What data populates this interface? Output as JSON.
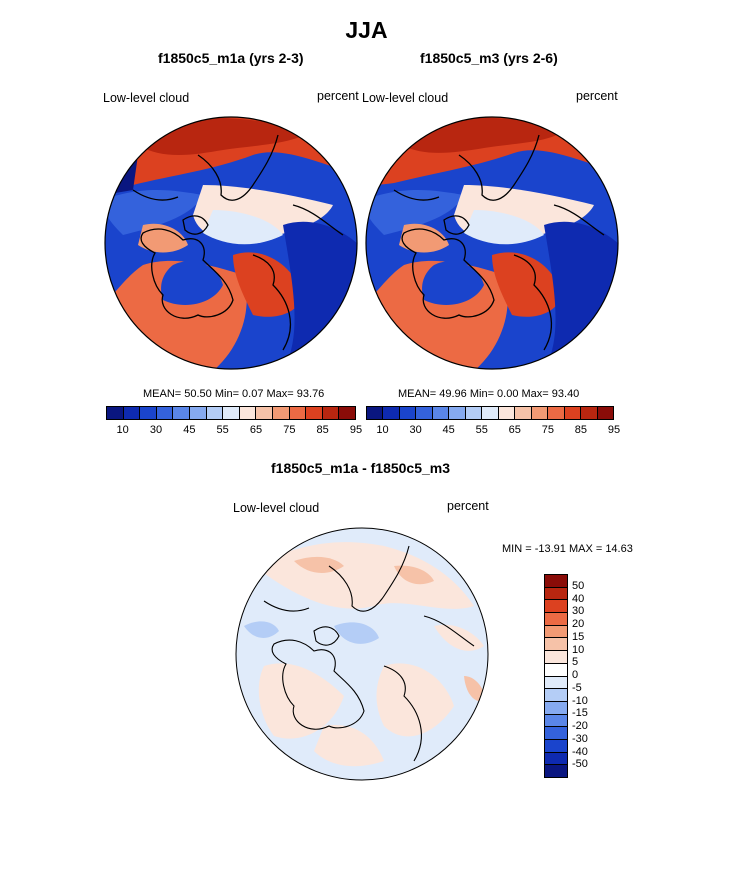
{
  "title": "JJA",
  "panels": [
    {
      "title": "f1850c5_m1a (yrs 2-3)",
      "left_label": "Low-level cloud",
      "right_label": "percent",
      "stats": "MEAN=  50.50  Min=   0.07  Max=  93.76"
    },
    {
      "title": "f1850c5_m3 (yrs 2-6)",
      "left_label": "Low-level cloud",
      "right_label": "percent",
      "stats": "MEAN=  49.96  Min=   0.00  Max=  93.40"
    }
  ],
  "colorbar": {
    "colors": [
      "#0a1680",
      "#0e2ab0",
      "#1a44cc",
      "#3462dc",
      "#5a86e8",
      "#86aaf0",
      "#b4cdf6",
      "#e0ebfa",
      "#fbe6dc",
      "#f6c2a8",
      "#f29a74",
      "#ec6a44",
      "#dc4120",
      "#b82610",
      "#8a0c08"
    ],
    "ticks": [
      "10",
      "30",
      "45",
      "55",
      "65",
      "75",
      "85",
      "95"
    ]
  },
  "diff_panel": {
    "title": "f1850c5_m1a - f1850c5_m3",
    "left_label": "Low-level cloud",
    "right_label": "percent",
    "stats": "MIN = -13.91 MAX =  14.63"
  },
  "diff_colorbar": {
    "colors": [
      "#8a0c08",
      "#b82610",
      "#dc4120",
      "#ec6a44",
      "#f29a74",
      "#f6c2a8",
      "#fbe6dc",
      "#ffffff",
      "#e0ebfa",
      "#b4cdf6",
      "#86aaf0",
      "#5a86e8",
      "#3462dc",
      "#1a44cc",
      "#0e2ab0",
      "#0a1680"
    ],
    "ticks": [
      "50",
      "40",
      "30",
      "20",
      "15",
      "10",
      "5",
      "0",
      "-5",
      "-10",
      "-15",
      "-20",
      "-30",
      "-40",
      "-50"
    ]
  }
}
